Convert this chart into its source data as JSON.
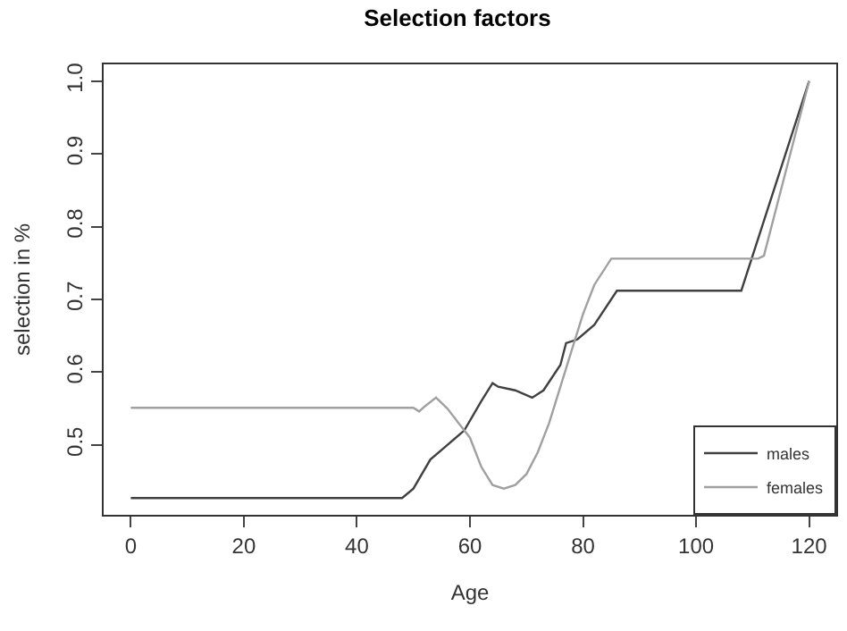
{
  "chart_data": {
    "type": "line",
    "title": "Selection factors",
    "xlabel": "Age",
    "ylabel": "selection in %",
    "xlim": [
      -4.8,
      124.8
    ],
    "ylim": [
      0.404,
      1.023
    ],
    "xticks": [
      0,
      20,
      40,
      60,
      80,
      100,
      120
    ],
    "yticks": [
      {
        "value": 0.5,
        "label": "0.5"
      },
      {
        "value": 0.6,
        "label": "0.6"
      },
      {
        "value": 0.7,
        "label": "0.7"
      },
      {
        "value": 0.8,
        "label": "0.8"
      },
      {
        "value": 0.9,
        "label": "0.9"
      },
      {
        "value": 1.0,
        "label": "1.0"
      }
    ],
    "legend": "bottom right",
    "marker": "none",
    "line_style": "solid",
    "series": [
      {
        "name": "males",
        "color": "#404040",
        "x": [
          0,
          48,
          50,
          53,
          56,
          59,
          62,
          64,
          65,
          68,
          71,
          73,
          76,
          77,
          79,
          82,
          86,
          108,
          120
        ],
        "values": [
          0.427,
          0.427,
          0.44,
          0.48,
          0.5,
          0.52,
          0.56,
          0.585,
          0.58,
          0.575,
          0.565,
          0.575,
          0.61,
          0.64,
          0.645,
          0.665,
          0.712,
          0.712,
          1.0
        ]
      },
      {
        "name": "females",
        "color": "#a0a0a0",
        "x": [
          0,
          50,
          51,
          52,
          54,
          56,
          58,
          60,
          62,
          64,
          66,
          68,
          70,
          72,
          74,
          76,
          78,
          80,
          82,
          85,
          111,
          112,
          120
        ],
        "values": [
          0.551,
          0.551,
          0.546,
          0.553,
          0.565,
          0.55,
          0.53,
          0.51,
          0.47,
          0.445,
          0.44,
          0.445,
          0.46,
          0.49,
          0.53,
          0.58,
          0.63,
          0.68,
          0.72,
          0.756,
          0.756,
          0.76,
          1.0
        ]
      }
    ]
  }
}
